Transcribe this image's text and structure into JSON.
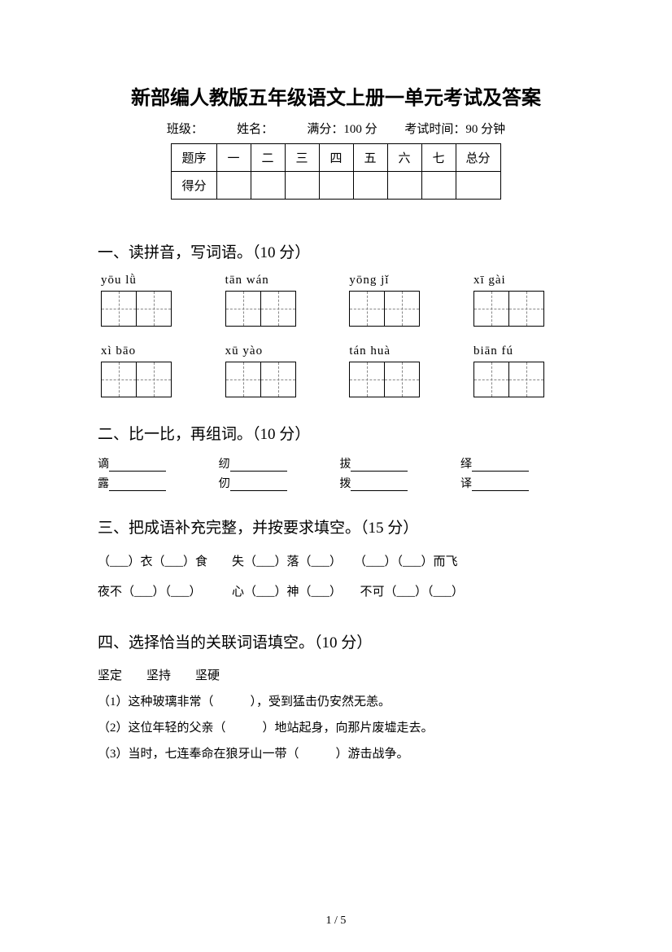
{
  "title": "新部编人教版五年级语文上册一单元考试及答案",
  "info": {
    "class_label": "班级：",
    "name_label": "姓名：",
    "full_score": "满分：100 分",
    "exam_time": "考试时间：90 分钟"
  },
  "score_table": {
    "row1": [
      "题序",
      "一",
      "二",
      "三",
      "四",
      "五",
      "六",
      "七",
      "总分"
    ],
    "row2_label": "得分"
  },
  "section1": {
    "heading": "一、读拼音，写词语。（10 分）",
    "pinyin_row1": [
      "yōu  lǜ",
      "tān  wán",
      "yōng  jǐ",
      "xī  gài"
    ],
    "pinyin_row2": [
      "xì  bāo",
      "xū  yào",
      "tán  huà",
      "biān  fú"
    ]
  },
  "section2": {
    "heading": "二、比一比，再组词。（10 分）",
    "row1": [
      "谪",
      "纫",
      "拔",
      "绎"
    ],
    "row2": [
      "露",
      "仞",
      "拨",
      "译"
    ]
  },
  "section3": {
    "heading": "三、把成语补充完整，并按要求填空。（15 分）",
    "line1": "（___）衣（___）食　　失（___）落（___）　　（___）（___）而飞",
    "line2": "夜不（___）（___）　　　心（___）神（___）　　不可（___）（___）"
  },
  "section4": {
    "heading": "四、选择恰当的关联词语填空。（10 分）",
    "words": "坚定　　坚持　　坚硬",
    "item1": "（1）这种玻璃非常（　　　），受到猛击仍安然无恙。",
    "item2": "（2）这位年轻的父亲（　　　）地站起身，向那片废墟走去。",
    "item3": "（3）当时，七连奉命在狼牙山一带（　　　）游击战争。"
  },
  "page_number": "1 / 5"
}
